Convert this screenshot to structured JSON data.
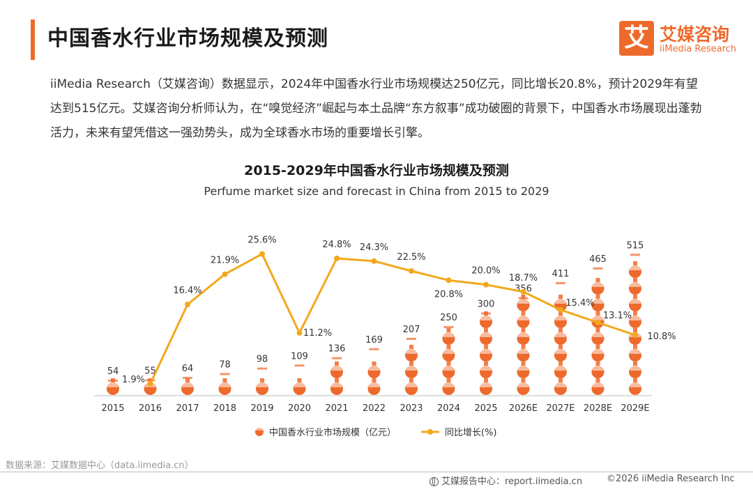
{
  "header": {
    "title": "中国香水行业市场规模及预测",
    "logo_mark": "艾",
    "logo_cn": "艾媒咨询",
    "logo_en": "iiMedia Research"
  },
  "intro": "iiMedia Research（艾媒咨询）数据显示，2024年中国香水行业市场规模达250亿元，同比增长20.8%，预计2029年有望达到515亿元。艾媒咨询分析师认为，在“嗅觉经济”崛起与本土品牌“东方叙事”成功破圈的背景下，中国香水市场展现出蓬勃活力，未来有望凭借这一强劲势头，成为全球香水市场的重要增长引擎。",
  "chart_data": {
    "type": "bar",
    "title": "2015-2029年中国香水行业市场规模及预测",
    "subtitle": "Perfume market size and forecast in China from 2015 to 2029",
    "categories": [
      "2015",
      "2016",
      "2017",
      "2018",
      "2019",
      "2020",
      "2021",
      "2022",
      "2023",
      "2024",
      "2025",
      "2026E",
      "2027E",
      "2028E",
      "2029E"
    ],
    "series": [
      {
        "name": "中国香水行业市场规模（亿元）",
        "type": "bar",
        "values": [
          54,
          55,
          64,
          78,
          98,
          109,
          136,
          169,
          207,
          250,
          300,
          356,
          411,
          465,
          515
        ],
        "labels": [
          "54",
          "55",
          "64",
          "78",
          "98",
          "109",
          "136",
          "169",
          "207",
          "250",
          "300",
          "356",
          "411",
          "465",
          "515"
        ]
      },
      {
        "name": "同比增长(%)",
        "type": "line",
        "values": [
          null,
          1.9,
          16.4,
          21.9,
          25.6,
          11.2,
          24.8,
          24.3,
          22.5,
          20.8,
          20.0,
          18.7,
          15.4,
          13.1,
          10.8
        ],
        "labels": [
          "",
          "1.9%",
          "16.4%",
          "21.9%",
          "25.6%",
          "11.2%",
          "24.8%",
          "24.3%",
          "22.5%",
          "20.8%",
          "20.0%",
          "18.7%",
          "15.4%",
          "13.1%",
          "10.8%"
        ]
      }
    ],
    "legend_position": "bottom",
    "grid": false,
    "colors": {
      "bar": "#ee6a2c",
      "line": "#f2a81c",
      "axis": "#bbbbbb"
    }
  },
  "footer": {
    "source": "数据来源：艾媒数据中心（data.iimedia.cn）",
    "report_center": "艾媒报告中心：report.iimedia.cn",
    "copyright": "©2026  iiMedia Research  Inc"
  }
}
